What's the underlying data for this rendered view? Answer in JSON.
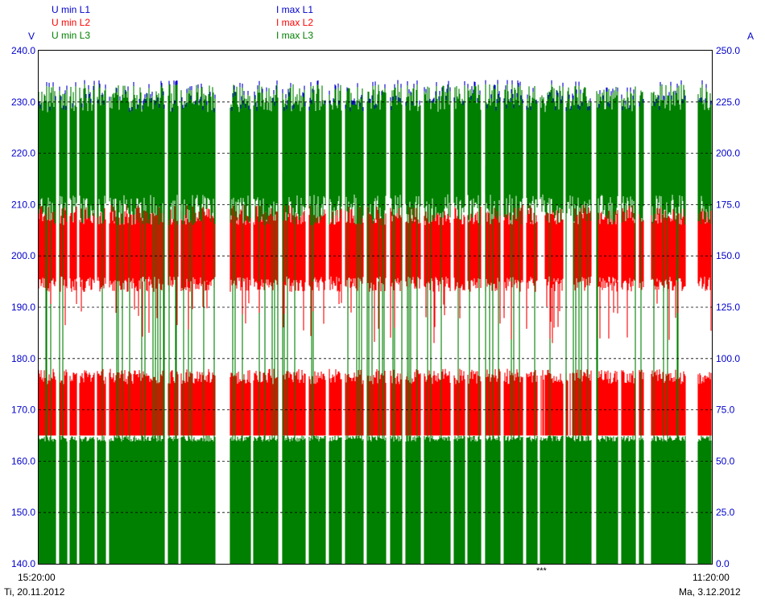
{
  "legend": {
    "voltage": [
      {
        "label": "U min L1",
        "color": "#0000cc"
      },
      {
        "label": "U min L2",
        "color": "#ff0000"
      },
      {
        "label": "U min L3",
        "color": "#008000"
      }
    ],
    "current": [
      {
        "label": "I max L1",
        "color": "#0000cc"
      },
      {
        "label": "I max L2",
        "color": "#ff0000"
      },
      {
        "label": "I max L3",
        "color": "#008000"
      }
    ]
  },
  "axes": {
    "left_unit": "V",
    "right_unit": "A",
    "x_start_time": "15:20:00",
    "x_start_date": "Ti, 20.11.2012",
    "x_end_time": "11:20:00",
    "x_end_date": "Ma, 3.12.2012",
    "marker": "***"
  },
  "chart_data": {
    "type": "area",
    "x_range": [
      "2012-11-20 15:20:00",
      "2012-12-03 11:20:00"
    ],
    "left_axis": {
      "unit": "V",
      "ylim": [
        140,
        240
      ],
      "ticks": [
        "240.0",
        "230.0",
        "220.0",
        "210.0",
        "200.0",
        "190.0",
        "180.0",
        "170.0",
        "160.0",
        "150.0",
        "140.0"
      ]
    },
    "right_axis": {
      "unit": "A",
      "ylim": [
        0,
        250
      ],
      "ticks": [
        "250.0",
        "225.0",
        "200.0",
        "175.0",
        "150.0",
        "125.0",
        "100.0",
        "75.0",
        "50.0",
        "25.0",
        "0.0"
      ]
    },
    "grid": "horizontal-dashed",
    "series": [
      {
        "name": "U min L1",
        "axis": "left",
        "color": "#0000cc",
        "typical_range": [
          229,
          235
        ]
      },
      {
        "name": "U min L2",
        "axis": "left",
        "color": "#ff0000",
        "typical_bands": [
          [
            193,
            210
          ],
          [
            165,
            178
          ]
        ]
      },
      {
        "name": "U min L3",
        "axis": "left",
        "color": "#008000",
        "typical_bands": [
          [
            207,
            234
          ],
          [
            140,
            165
          ]
        ]
      },
      {
        "name": "I max L1",
        "axis": "right",
        "color": "#0000cc"
      },
      {
        "name": "I max L2",
        "axis": "right",
        "color": "#ff0000"
      },
      {
        "name": "I max L3",
        "axis": "right",
        "color": "#008000"
      }
    ]
  }
}
